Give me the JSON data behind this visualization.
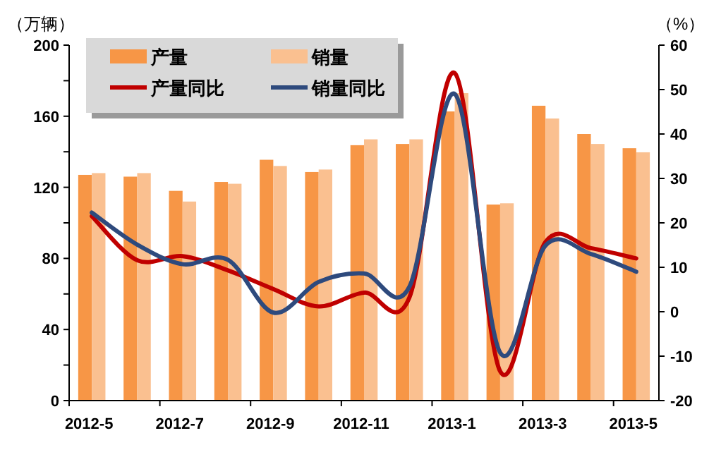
{
  "chart_data": {
    "type": "bar",
    "categories": [
      "2012-5",
      null,
      "2012-7",
      null,
      "2012-9",
      null,
      "2012-11",
      null,
      "2013-1",
      null,
      "2013-3",
      null,
      "2013-5"
    ],
    "series": [
      {
        "name": "产量",
        "color": "#f79646",
        "values": [
          127,
          126,
          118,
          123,
          135.5,
          128.6,
          143.7,
          144.4,
          162.7,
          110.3,
          165.9,
          150,
          142
        ]
      },
      {
        "name": "销量",
        "color": "#fac090",
        "values": [
          128,
          128,
          112,
          122,
          132,
          130,
          147,
          147,
          173,
          111,
          158.7,
          144.4,
          139.7
        ]
      },
      {
        "name": "产量同比",
        "type": "line",
        "axis": "y2",
        "color": "#c00000",
        "values": [
          21.5,
          11.6,
          12.5,
          9.3,
          5.1,
          1.2,
          4.3,
          3.2,
          53.7,
          -13.4,
          15.7,
          14.3,
          12
        ]
      },
      {
        "name": "销量同比",
        "type": "line",
        "axis": "y2",
        "color": "#2e4a7d",
        "values": [
          22.3,
          15.1,
          10.7,
          11.7,
          -0.2,
          6.7,
          8.6,
          5.6,
          49,
          -9.2,
          14.9,
          13,
          9
        ]
      }
    ],
    "ylabel": "（万辆）",
    "y2label": "（%）",
    "ylim": [
      0,
      200
    ],
    "yticks": [
      0,
      {
        "value": 20,
        "label": null
      },
      40,
      {
        "value": 60,
        "label": null
      },
      80,
      {
        "value": 100,
        "label": null
      },
      120,
      {
        "value": 140,
        "label": null
      },
      160,
      {
        "value": 180,
        "label": null
      },
      200
    ],
    "y2lim": [
      -20,
      60
    ],
    "y2ticks": [
      -20,
      -10,
      0,
      10,
      20,
      30,
      40,
      50,
      60
    ],
    "legend": "top left"
  }
}
